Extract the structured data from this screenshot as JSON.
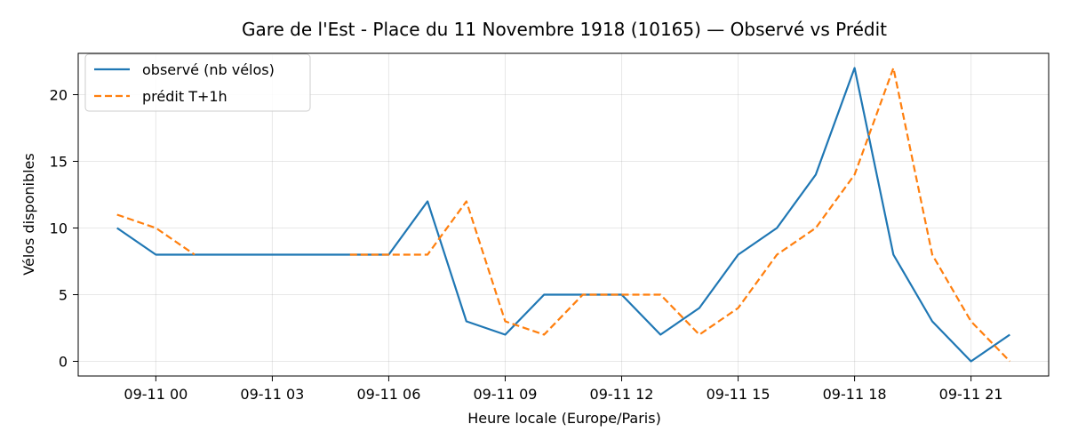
{
  "chart_data": {
    "type": "line",
    "title": "Gare de l'Est - Place du 11 Novembre 1918 (10165) — Observé vs Prédit",
    "xlabel": "Heure locale (Europe/Paris)",
    "ylabel": "Vélos disponibles",
    "x_unit": "hour",
    "x": [
      "09-10 23:00",
      "09-11 00:00",
      "09-11 01:00",
      "09-11 02:00",
      "09-11 03:00",
      "09-11 04:00",
      "09-11 05:00",
      "09-11 06:00",
      "09-11 07:00",
      "09-11 08:00",
      "09-11 09:00",
      "09-11 10:00",
      "09-11 11:00",
      "09-11 12:00",
      "09-11 13:00",
      "09-11 14:00",
      "09-11 15:00",
      "09-11 16:00",
      "09-11 17:00",
      "09-11 18:00",
      "09-11 19:00",
      "09-11 20:00",
      "09-11 21:00",
      "09-11 22:00"
    ],
    "xlim": [
      "09-10 22:00",
      "09-11 23:00"
    ],
    "ylim": [
      -1.1,
      23.1
    ],
    "x_ticks": [
      "09-11 00",
      "09-11 03",
      "09-11 06",
      "09-11 09",
      "09-11 12",
      "09-11 15",
      "09-11 18",
      "09-11 21"
    ],
    "y_ticks": [
      0,
      5,
      10,
      15,
      20
    ],
    "grid": true,
    "legend_position": "top-left",
    "series": [
      {
        "name": "observé (nb vélos)",
        "color": "#1f77b4",
        "style": "solid",
        "values": [
          10,
          8,
          8,
          8,
          8,
          8,
          8,
          8,
          12,
          3,
          2,
          5,
          5,
          5,
          2,
          4,
          8,
          10,
          14,
          22,
          8,
          3,
          0,
          2
        ]
      },
      {
        "name": "prédit T+1h",
        "color": "#ff7f0e",
        "style": "dashed",
        "values": [
          11,
          10,
          8,
          null,
          null,
          null,
          8,
          8,
          8,
          12,
          3,
          2,
          5,
          5,
          5,
          2,
          4,
          8,
          10,
          14,
          22,
          8,
          3,
          0
        ]
      }
    ]
  }
}
